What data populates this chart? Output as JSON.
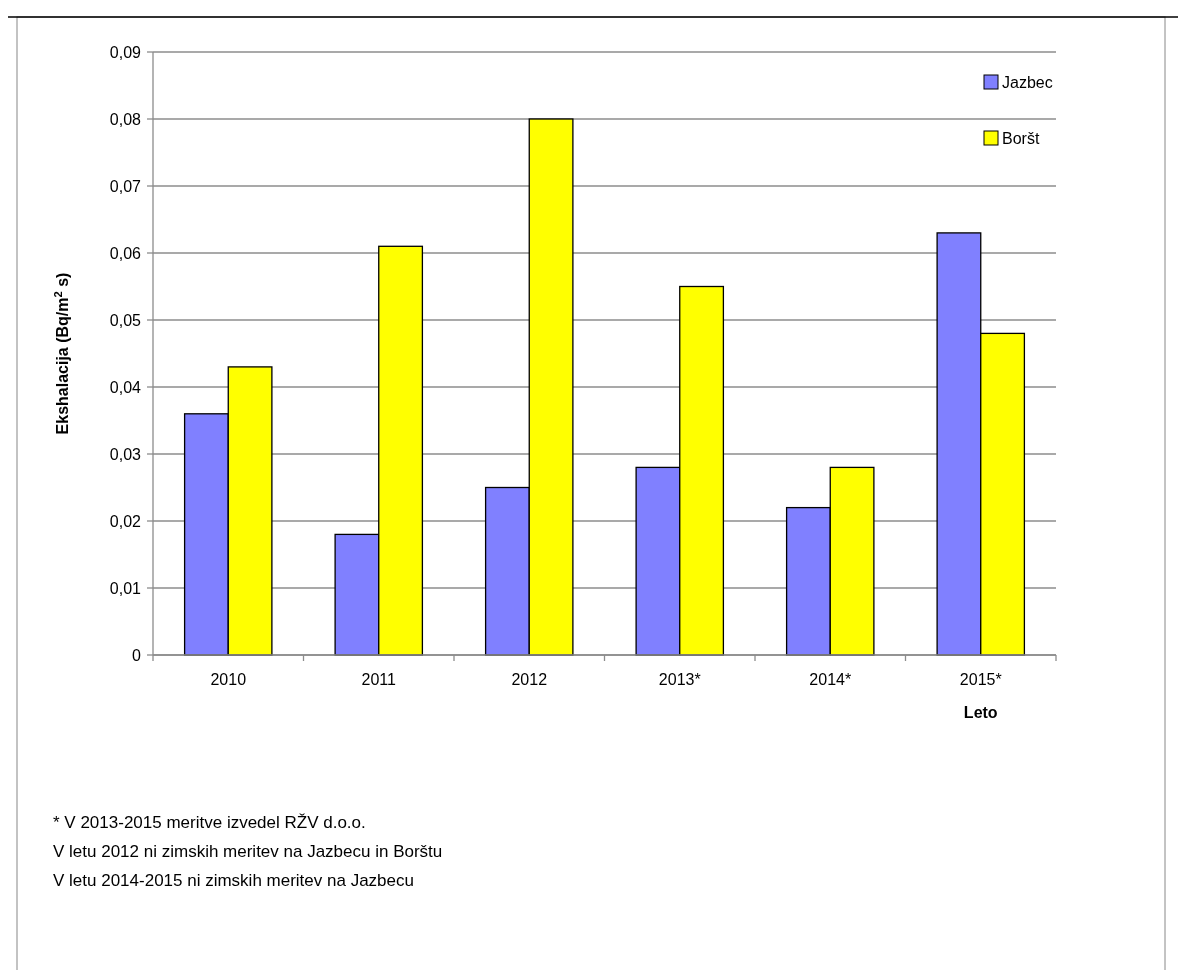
{
  "chart_data": {
    "type": "bar",
    "xlabel": "Leto",
    "ylabel": "Ekshalacija  (Bq/m$^{2}$ s)",
    "categories": [
      "2010",
      "2011",
      "2012",
      "2013*",
      "2014*",
      "2015*"
    ],
    "series": [
      {
        "name": "Jazbec",
        "color": "#8080ff",
        "values": [
          0.036,
          0.018,
          0.025,
          0.028,
          0.022,
          0.063
        ]
      },
      {
        "name": "Boršt",
        "color": "#ffff00",
        "values": [
          0.043,
          0.061,
          0.08,
          0.055,
          0.028,
          0.048
        ]
      }
    ],
    "ylim": [
      0,
      0.09
    ],
    "yticks": [
      0,
      {
        "value": 0.01,
        "label": "0,01"
      },
      {
        "value": 0.02,
        "label": "0,02"
      },
      {
        "value": 0.03,
        "label": "0,03"
      },
      {
        "value": 0.04,
        "label": "0,04"
      },
      {
        "value": 0.05,
        "label": "0,05"
      },
      {
        "value": 0.06,
        "label": "0,06"
      },
      {
        "value": 0.07,
        "label": "0,07"
      },
      {
        "value": 0.08,
        "label": "0,08"
      },
      {
        "value": 0.09,
        "label": "0,09"
      }
    ],
    "grid": "y",
    "legend": "top right",
    "annotations": [
      "* V 2013-2015  meritve izvedel RŽV d.o.o.",
      "V letu 2012  ni zimskih meritev na Jazbecu in Borštu",
      "V letu 2014-2015  ni zimskih meritev na Jazbecu"
    ]
  }
}
